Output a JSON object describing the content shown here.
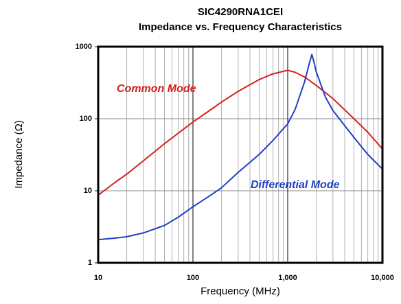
{
  "chart_data": {
    "type": "line",
    "title": "SIC4290RNA1CEI",
    "subtitle": "Impedance vs. Frequency Characteristics",
    "x_label": "Frequency (MHz)",
    "y_label": "Impedance (Ω)",
    "x": [
      10,
      15,
      20,
      30,
      50,
      70,
      100,
      150,
      200,
      300,
      500,
      700,
      1000,
      1200,
      1500,
      1700,
      1800,
      1900,
      2000,
      2500,
      3000,
      5000,
      7000,
      10000
    ],
    "series": [
      {
        "name": "Common Mode",
        "color": "#d42020",
        "values": [
          8.7,
          13,
          17,
          26,
          45,
          63,
          90,
          130,
          170,
          240,
          350,
          420,
          470,
          440,
          380,
          340,
          320,
          305,
          290,
          230,
          190,
          100,
          65,
          38
        ]
      },
      {
        "name": "Differential Mode",
        "color": "#1f3fc4",
        "values": [
          2.1,
          2.2,
          2.3,
          2.6,
          3.3,
          4.3,
          6,
          8.5,
          11,
          18,
          32,
          50,
          85,
          135,
          320,
          600,
          780,
          600,
          450,
          200,
          130,
          55,
          32,
          20
        ]
      }
    ],
    "xlim": [
      10,
      10000
    ],
    "ylim": [
      1,
      1000
    ],
    "xticks": [
      10,
      100,
      {
        "value": 1000,
        "label": "1,000"
      },
      {
        "value": 10000,
        "label": "10,000"
      }
    ],
    "yticks": [
      1,
      10,
      100,
      1000
    ],
    "xminorticks": [
      20,
      30,
      40,
      50,
      60,
      70,
      80,
      90,
      200,
      300,
      400,
      500,
      600,
      700,
      800,
      900,
      2000,
      3000,
      4000,
      5000,
      6000,
      7000,
      8000,
      9000
    ],
    "xlog": true,
    "ylog": true,
    "grid": true
  }
}
